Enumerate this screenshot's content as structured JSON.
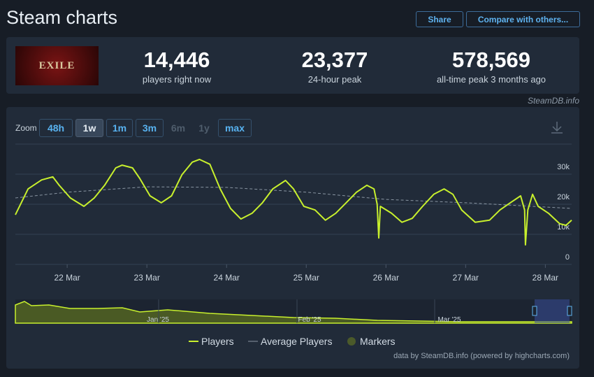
{
  "header": {
    "title": "Steam charts",
    "share": "Share",
    "compare": "Compare with others..."
  },
  "game": {
    "logo_text": "EXILE"
  },
  "stats": [
    {
      "value": "14,446",
      "label": "players right now"
    },
    {
      "value": "23,377",
      "label": "24-hour peak"
    },
    {
      "value": "578,569",
      "label": "all-time peak 3 months ago"
    }
  ],
  "watermark": "SteamDB.info",
  "zoom": {
    "label": "Zoom",
    "buttons": [
      "48h",
      "1w",
      "1m",
      "3m",
      "6m",
      "1y",
      "max"
    ],
    "active": "1w",
    "disabled": [
      "6m",
      "1y"
    ]
  },
  "chart_data": {
    "type": "line",
    "xlim": [
      21.35,
      28.33
    ],
    "xticks": [
      {
        "value": 22,
        "label": "22 Mar"
      },
      {
        "value": 23,
        "label": "23 Mar"
      },
      {
        "value": 24,
        "label": "24 Mar"
      },
      {
        "value": 25,
        "label": "25 Mar"
      },
      {
        "value": 26,
        "label": "26 Mar"
      },
      {
        "value": 27,
        "label": "27 Mar"
      },
      {
        "value": 28,
        "label": "28 Mar"
      }
    ],
    "ylim": [
      0,
      40000
    ],
    "yticks": [
      0,
      {
        "value": 10000,
        "label": "10k"
      },
      {
        "value": 20000,
        "label": "20k"
      },
      {
        "value": 30000,
        "label": "30k"
      }
    ],
    "grid": true,
    "series": [
      {
        "name": "Players",
        "color": "#c8f02d",
        "x": [
          21.35,
          21.51,
          21.68,
          21.82,
          21.9,
          22.04,
          22.21,
          22.34,
          22.47,
          22.61,
          22.69,
          22.82,
          22.91,
          23.04,
          23.18,
          23.31,
          23.44,
          23.57,
          23.66,
          23.79,
          23.92,
          24.05,
          24.18,
          24.32,
          24.45,
          24.58,
          24.74,
          24.84,
          24.97,
          25.11,
          25.24,
          25.37,
          25.5,
          25.63,
          25.76,
          25.85,
          25.89,
          25.91,
          25.93,
          26.07,
          26.2,
          26.33,
          26.46,
          26.6,
          26.73,
          26.84,
          26.95,
          27.12,
          27.3,
          27.43,
          27.56,
          27.69,
          27.74,
          27.75,
          27.78,
          27.84,
          27.91,
          28.04,
          28.18,
          28.26,
          28.33
        ],
        "values": [
          16500,
          25100,
          28100,
          29100,
          26300,
          22100,
          19300,
          22100,
          26300,
          32100,
          33000,
          32100,
          28600,
          22800,
          20500,
          22800,
          29800,
          34000,
          34900,
          33300,
          25100,
          18600,
          15100,
          17000,
          20500,
          25100,
          27900,
          25100,
          19300,
          18100,
          14700,
          17000,
          20500,
          24000,
          26300,
          25100,
          20000,
          8800,
          19300,
          17000,
          14000,
          15300,
          19300,
          23300,
          25100,
          23300,
          18100,
          14000,
          14700,
          18100,
          20500,
          22800,
          18100,
          6500,
          18100,
          23300,
          19300,
          17000,
          13500,
          13000,
          14700
        ]
      },
      {
        "name": "Average Players",
        "color": "#8a96a3",
        "x": [
          21.35,
          22,
          23,
          24,
          25,
          26,
          27,
          28.33
        ],
        "values": [
          22100,
          24000,
          25800,
          25600,
          24000,
          21600,
          20500,
          18600
        ]
      }
    ],
    "legend_extra": [
      {
        "name": "Markers",
        "color": "#4b5a2a"
      }
    ],
    "navigator_labels": [
      "Jan '25",
      "Feb '25",
      "Mar '25"
    ],
    "credits": "data by SteamDB.info (powered by highcharts.com)"
  }
}
